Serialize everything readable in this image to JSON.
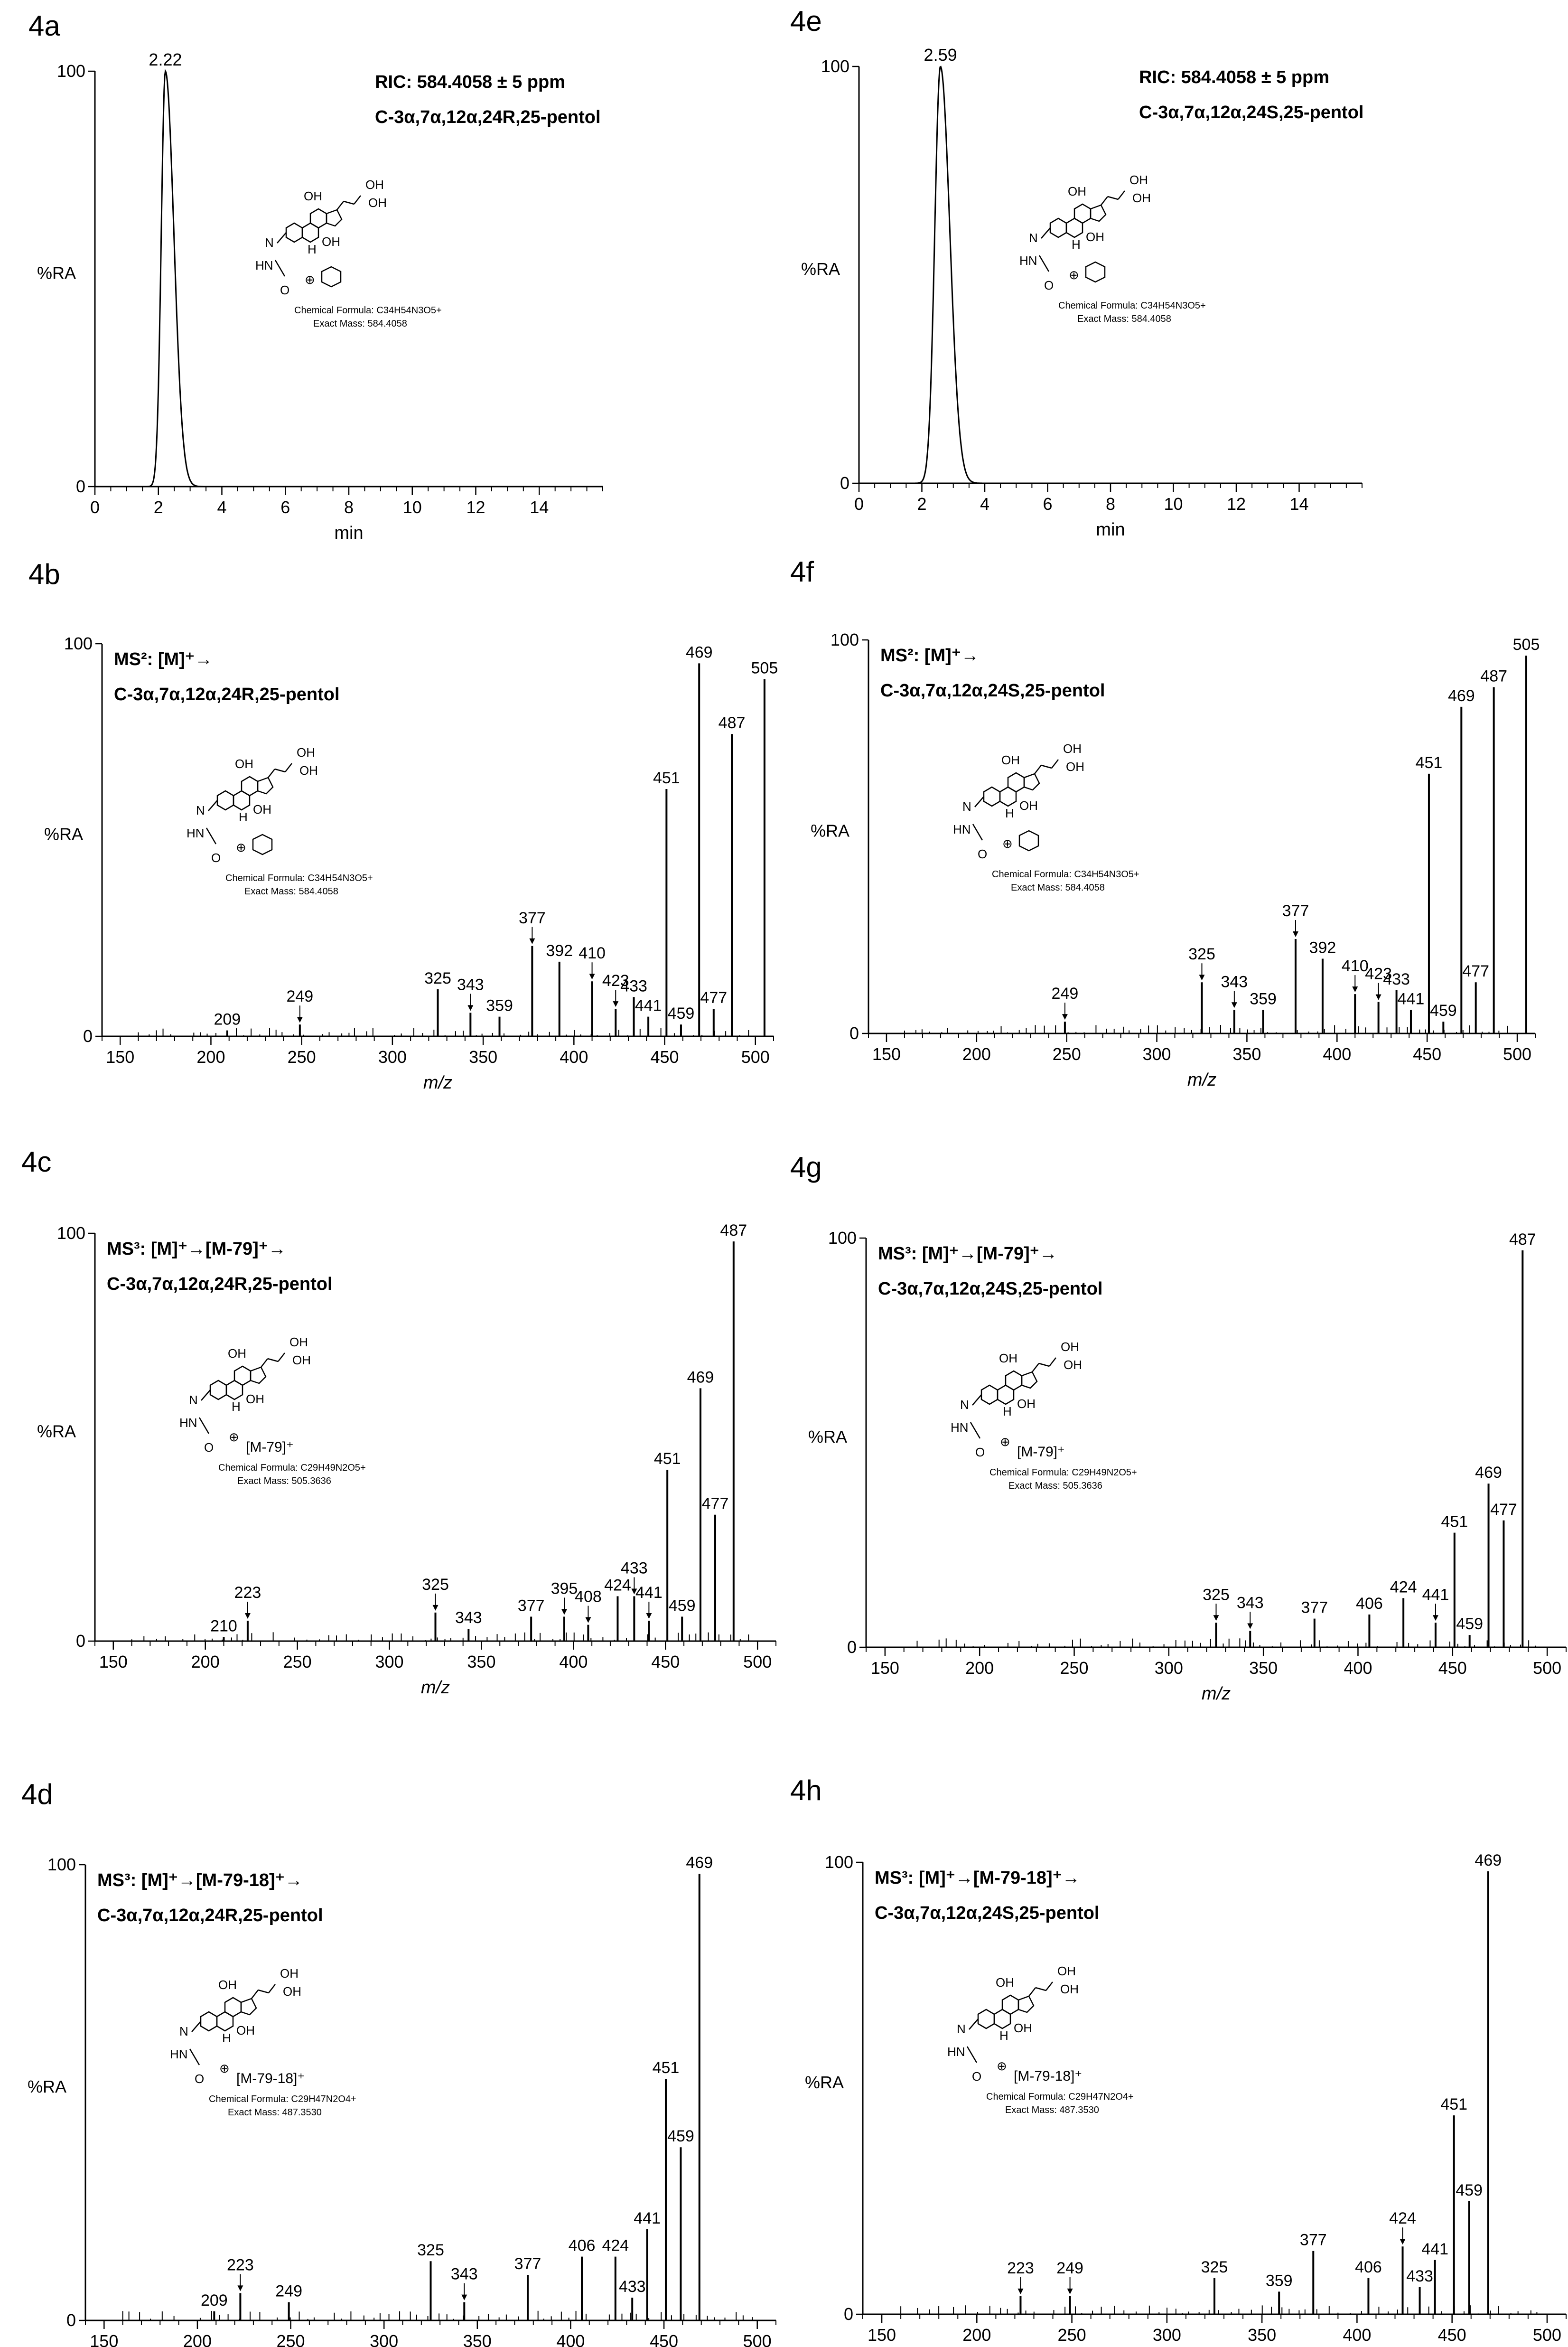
{
  "chart_data": [
    {
      "id": "4a",
      "panel_label": "4a",
      "type": "line",
      "ylabel": "%RA",
      "xlabel": "min",
      "xlim": [
        0,
        16
      ],
      "ylim": [
        0,
        100
      ],
      "xticks": [
        0,
        2,
        4,
        6,
        8,
        10,
        12,
        14
      ],
      "yticks": [
        0,
        100
      ],
      "peak": {
        "center": 2.22,
        "label": "2.22",
        "width_left": 0.13,
        "width_right": 0.27
      },
      "header_lines": [
        "RIC: 584.4058 ± 5 ppm",
        "C-3α,7α,12α,24R,25-pentol"
      ],
      "structure": {
        "label": "",
        "formula_text": "Chemical Formula: C34H54N3O5+",
        "mass_text": "Exact Mass: 584.4058"
      }
    },
    {
      "id": "4e",
      "panel_label": "4e",
      "type": "line",
      "ylabel": "%RA",
      "xlabel": "min",
      "xlim": [
        0,
        16
      ],
      "ylim": [
        0,
        100
      ],
      "xticks": [
        0,
        2,
        4,
        6,
        8,
        10,
        12,
        14
      ],
      "yticks": [
        0,
        100
      ],
      "peak": {
        "center": 2.59,
        "label": "2.59",
        "width_left": 0.18,
        "width_right": 0.3
      },
      "header_lines": [
        "RIC: 584.4058 ± 5 ppm",
        "C-3α,7α,12α,24S,25-pentol"
      ],
      "structure": {
        "label": "",
        "formula_text": "Chemical Formula: C34H54N3O5+",
        "mass_text": "Exact Mass: 584.4058"
      }
    },
    {
      "id": "4b",
      "panel_label": "4b",
      "type": "bar",
      "ylabel": "%RA",
      "xlabel": "m/z",
      "xlim": [
        140,
        510
      ],
      "ylim": [
        0,
        100
      ],
      "xticks": [
        150,
        200,
        250,
        300,
        350,
        400,
        450,
        500
      ],
      "yticks": [
        0,
        100
      ],
      "header_lines": [
        "MS²: [M]⁺→",
        "C-3α,7α,12α,24R,25-pentol"
      ],
      "structure": {
        "label": "",
        "formula_text": "Chemical Formula: C34H54N3O5+",
        "mass_text": "Exact Mass: 584.4058"
      },
      "peaks": [
        {
          "x": 209,
          "y": 1.5,
          "label": "209"
        },
        {
          "x": 249,
          "y": 3,
          "label": "249",
          "arrow": true
        },
        {
          "x": 325,
          "y": 12,
          "label": "325"
        },
        {
          "x": 343,
          "y": 6,
          "label": "343",
          "arrow": true
        },
        {
          "x": 359,
          "y": 5,
          "label": "359"
        },
        {
          "x": 377,
          "y": 23,
          "label": "377",
          "arrow": true
        },
        {
          "x": 392,
          "y": 19,
          "label": "392"
        },
        {
          "x": 410,
          "y": 14,
          "label": "410",
          "arrow": true
        },
        {
          "x": 423,
          "y": 7,
          "label": "423",
          "arrow": true
        },
        {
          "x": 433,
          "y": 10,
          "label": "433"
        },
        {
          "x": 441,
          "y": 5,
          "label": "441"
        },
        {
          "x": 451,
          "y": 63,
          "label": "451"
        },
        {
          "x": 459,
          "y": 3,
          "label": "459"
        },
        {
          "x": 469,
          "y": 95,
          "label": "469"
        },
        {
          "x": 477,
          "y": 7,
          "label": "477"
        },
        {
          "x": 487,
          "y": 77,
          "label": "487"
        },
        {
          "x": 505,
          "y": 91,
          "label": "505"
        }
      ]
    },
    {
      "id": "4f",
      "panel_label": "4f",
      "type": "bar",
      "ylabel": "%RA",
      "xlabel": "m/z",
      "xlim": [
        140,
        510
      ],
      "ylim": [
        0,
        100
      ],
      "xticks": [
        150,
        200,
        250,
        300,
        350,
        400,
        450,
        500
      ],
      "yticks": [
        0,
        100
      ],
      "header_lines": [
        "MS²: [M]⁺→",
        "C-3α,7α,12α,24S,25-pentol"
      ],
      "structure": {
        "label": "",
        "formula_text": "Chemical Formula: C34H54N3O5+",
        "mass_text": "Exact Mass: 584.4058"
      },
      "peaks": [
        {
          "x": 249,
          "y": 3,
          "label": "249",
          "arrow": true
        },
        {
          "x": 325,
          "y": 13,
          "label": "325",
          "arrow": true
        },
        {
          "x": 343,
          "y": 6,
          "label": "343",
          "arrow": true
        },
        {
          "x": 359,
          "y": 6,
          "label": "359"
        },
        {
          "x": 377,
          "y": 24,
          "label": "377",
          "arrow": true
        },
        {
          "x": 392,
          "y": 19,
          "label": "392"
        },
        {
          "x": 410,
          "y": 10,
          "label": "410",
          "arrow": true
        },
        {
          "x": 423,
          "y": 8,
          "label": "423",
          "arrow": true
        },
        {
          "x": 433,
          "y": 11,
          "label": "433"
        },
        {
          "x": 441,
          "y": 6,
          "label": "441"
        },
        {
          "x": 451,
          "y": 66,
          "label": "451"
        },
        {
          "x": 459,
          "y": 3,
          "label": "459"
        },
        {
          "x": 469,
          "y": 83,
          "label": "469"
        },
        {
          "x": 477,
          "y": 13,
          "label": "477"
        },
        {
          "x": 487,
          "y": 88,
          "label": "487"
        },
        {
          "x": 505,
          "y": 96,
          "label": "505"
        }
      ]
    },
    {
      "id": "4c",
      "panel_label": "4c",
      "type": "bar",
      "ylabel": "%RA",
      "xlabel": "m/z",
      "xlim": [
        140,
        510
      ],
      "ylim": [
        0,
        100
      ],
      "xticks": [
        150,
        200,
        250,
        300,
        350,
        400,
        450,
        500
      ],
      "yticks": [
        0,
        100
      ],
      "header_lines": [
        "MS³: [M]⁺→[M-79]⁺→",
        "C-3α,7α,12α,24R,25-pentol"
      ],
      "structure": {
        "label": "[M-79]⁺",
        "formula_text": "Chemical Formula: C29H49N2O5+",
        "mass_text": "Exact Mass: 505.3636"
      },
      "peaks": [
        {
          "x": 210,
          "y": 1,
          "label": "210"
        },
        {
          "x": 223,
          "y": 5,
          "label": "223",
          "arrow": true
        },
        {
          "x": 325,
          "y": 7,
          "label": "325",
          "arrow": true
        },
        {
          "x": 343,
          "y": 3,
          "label": "343"
        },
        {
          "x": 377,
          "y": 6,
          "label": "377"
        },
        {
          "x": 395,
          "y": 6,
          "label": "395",
          "arrow": true
        },
        {
          "x": 408,
          "y": 4,
          "label": "408",
          "arrow": true
        },
        {
          "x": 424,
          "y": 11,
          "label": "424"
        },
        {
          "x": 433,
          "y": 11,
          "label": "433",
          "arrow": true
        },
        {
          "x": 441,
          "y": 5,
          "label": "441",
          "arrow": true
        },
        {
          "x": 451,
          "y": 42,
          "label": "451"
        },
        {
          "x": 459,
          "y": 6,
          "label": "459"
        },
        {
          "x": 469,
          "y": 62,
          "label": "469"
        },
        {
          "x": 477,
          "y": 31,
          "label": "477"
        },
        {
          "x": 487,
          "y": 98,
          "label": "487"
        }
      ]
    },
    {
      "id": "4g",
      "panel_label": "4g",
      "type": "bar",
      "ylabel": "%RA",
      "xlabel": "m/z",
      "xlim": [
        140,
        510
      ],
      "ylim": [
        0,
        100
      ],
      "xticks": [
        150,
        200,
        250,
        300,
        350,
        400,
        450,
        500
      ],
      "yticks": [
        0,
        100
      ],
      "header_lines": [
        "MS³: [M]⁺→[M-79]⁺→",
        "C-3α,7α,12α,24S,25-pentol"
      ],
      "structure": {
        "label": "[M-79]⁺",
        "formula_text": "Chemical Formula: C29H49N2O5+",
        "mass_text": "Exact Mass: 505.3636"
      },
      "peaks": [
        {
          "x": 325,
          "y": 6,
          "label": "325",
          "arrow": true
        },
        {
          "x": 343,
          "y": 4,
          "label": "343",
          "arrow": true
        },
        {
          "x": 377,
          "y": 7,
          "label": "377"
        },
        {
          "x": 406,
          "y": 8,
          "label": "406"
        },
        {
          "x": 424,
          "y": 12,
          "label": "424"
        },
        {
          "x": 441,
          "y": 6,
          "label": "441",
          "arrow": true
        },
        {
          "x": 451,
          "y": 28,
          "label": "451"
        },
        {
          "x": 459,
          "y": 3,
          "label": "459"
        },
        {
          "x": 469,
          "y": 40,
          "label": "469"
        },
        {
          "x": 477,
          "y": 31,
          "label": "477"
        },
        {
          "x": 487,
          "y": 97,
          "label": "487"
        }
      ]
    },
    {
      "id": "4d",
      "panel_label": "4d",
      "type": "bar",
      "ylabel": "%RA",
      "xlabel": "m/z",
      "xlim": [
        140,
        510
      ],
      "ylim": [
        0,
        100
      ],
      "xticks": [
        150,
        200,
        250,
        300,
        350,
        400,
        450,
        500
      ],
      "yticks": [
        0,
        100
      ],
      "header_lines": [
        "MS³: [M]⁺→[M-79-18]⁺→",
        "C-3α,7α,12α,24R,25-pentol"
      ],
      "structure": {
        "label": "[M-79-18]⁺",
        "formula_text": "Chemical Formula: C29H47N2O4+",
        "mass_text": "Exact Mass: 487.3530"
      },
      "peaks": [
        {
          "x": 209,
          "y": 2,
          "label": "209"
        },
        {
          "x": 223,
          "y": 6,
          "label": "223",
          "arrow": true
        },
        {
          "x": 249,
          "y": 4,
          "label": "249"
        },
        {
          "x": 325,
          "y": 13,
          "label": "325"
        },
        {
          "x": 343,
          "y": 4,
          "label": "343",
          "arrow": true
        },
        {
          "x": 377,
          "y": 10,
          "label": "377"
        },
        {
          "x": 406,
          "y": 14,
          "label": "406"
        },
        {
          "x": 424,
          "y": 14,
          "label": "424"
        },
        {
          "x": 433,
          "y": 5,
          "label": "433"
        },
        {
          "x": 441,
          "y": 20,
          "label": "441"
        },
        {
          "x": 451,
          "y": 53,
          "label": "451"
        },
        {
          "x": 459,
          "y": 38,
          "label": "459"
        },
        {
          "x": 469,
          "y": 98,
          "label": "469"
        }
      ]
    },
    {
      "id": "4h",
      "panel_label": "4h",
      "type": "bar",
      "ylabel": "%RA",
      "xlabel": "m/z",
      "xlim": [
        140,
        510
      ],
      "ylim": [
        0,
        100
      ],
      "xticks": [
        150,
        200,
        250,
        300,
        350,
        400,
        450,
        500
      ],
      "yticks": [
        0,
        100
      ],
      "header_lines": [
        "MS³: [M]⁺→[M-79-18]⁺→",
        "C-3α,7α,12α,24S,25-pentol"
      ],
      "structure": {
        "label": "[M-79-18]⁺",
        "formula_text": "Chemical Formula: C29H47N2O4+",
        "mass_text": "Exact Mass: 487.3530"
      },
      "peaks": [
        {
          "x": 223,
          "y": 4,
          "label": "223",
          "arrow": true
        },
        {
          "x": 249,
          "y": 4,
          "label": "249",
          "arrow": true
        },
        {
          "x": 325,
          "y": 8,
          "label": "325"
        },
        {
          "x": 359,
          "y": 5,
          "label": "359"
        },
        {
          "x": 377,
          "y": 14,
          "label": "377"
        },
        {
          "x": 406,
          "y": 8,
          "label": "406"
        },
        {
          "x": 424,
          "y": 15,
          "label": "424",
          "arrow": true
        },
        {
          "x": 433,
          "y": 6,
          "label": "433"
        },
        {
          "x": 441,
          "y": 12,
          "label": "441"
        },
        {
          "x": 451,
          "y": 44,
          "label": "451"
        },
        {
          "x": 459,
          "y": 25,
          "label": "459"
        },
        {
          "x": 469,
          "y": 98,
          "label": "469"
        }
      ]
    }
  ]
}
